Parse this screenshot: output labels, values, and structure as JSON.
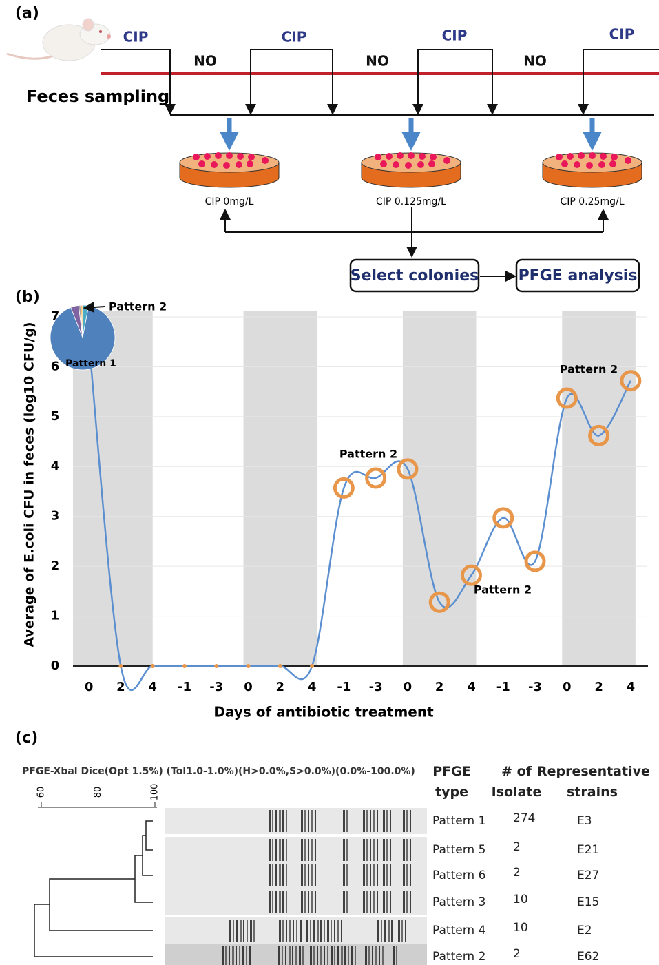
{
  "panel_a": {
    "label": "(a)",
    "dosing_labels": [
      "CIP",
      "NO",
      "CIP",
      "NO",
      "CIP",
      "NO",
      "CIP"
    ],
    "sampling_label": "Feces sampling",
    "plates": [
      "CIP 0mg/L",
      "CIP 0.125mg/L",
      "CIP 0.25mg/L"
    ],
    "steps": [
      "Select colonies",
      "PFGE analysis"
    ]
  },
  "panel_b_label": "(b)",
  "chart_data": {
    "type": "line",
    "x_label": "Days of antibiotic treatment",
    "y_label": "Average of E.coli CFU in feces (log10 CFU/g)",
    "categories": [
      "0",
      "2",
      "4",
      "-1",
      "-3",
      "0",
      "2",
      "4",
      "-1",
      "-3",
      "0",
      "2",
      "4",
      "-1",
      "-3",
      "0",
      "2",
      "4"
    ],
    "values": [
      6.5,
      0,
      0,
      0,
      0,
      0,
      0,
      0,
      3.57,
      3.77,
      3.95,
      1.28,
      1.82,
      2.97,
      2.1,
      5.37,
      4.62,
      5.72
    ],
    "color": "#5b8fd0",
    "marker_color": "#e8964a",
    "ylim": [
      0,
      7
    ],
    "yticks": [
      0,
      1,
      2,
      3,
      4,
      5,
      6,
      7
    ],
    "grid": true,
    "annotations": [
      "Pattern 2",
      "Pattern 2",
      "Pattern 2"
    ],
    "inset_pie": {
      "labels": [
        null,
        "Pattern 1",
        null,
        null,
        "Pattern 2"
      ],
      "values": [
        3,
        91,
        4,
        1,
        1
      ],
      "colors": [
        "#4bacc6",
        "#4f81bd",
        "#8064a2",
        "#a5a5a5",
        "#f7c27a"
      ]
    }
  },
  "panel_c": {
    "label": "(c)",
    "method": "PFGE-Xbal Dice(Opt 1.5%) (Tol1.0-1.0%)(H>0.0%,S>0.0%)(0.0%-100.0%)",
    "scale_ticks": [
      60,
      80,
      100
    ],
    "columns": [
      "PFGE type",
      "# of Isolate",
      "Representative strains"
    ],
    "rows": [
      [
        "Pattern 1",
        274,
        "E3"
      ],
      [
        "Pattern 5",
        2,
        "E21"
      ],
      [
        "Pattern 6",
        2,
        "E27"
      ],
      [
        "Pattern 3",
        10,
        "E15"
      ],
      [
        "Pattern 4",
        10,
        "E2"
      ],
      [
        "Pattern 2",
        2,
        "E62"
      ]
    ]
  }
}
